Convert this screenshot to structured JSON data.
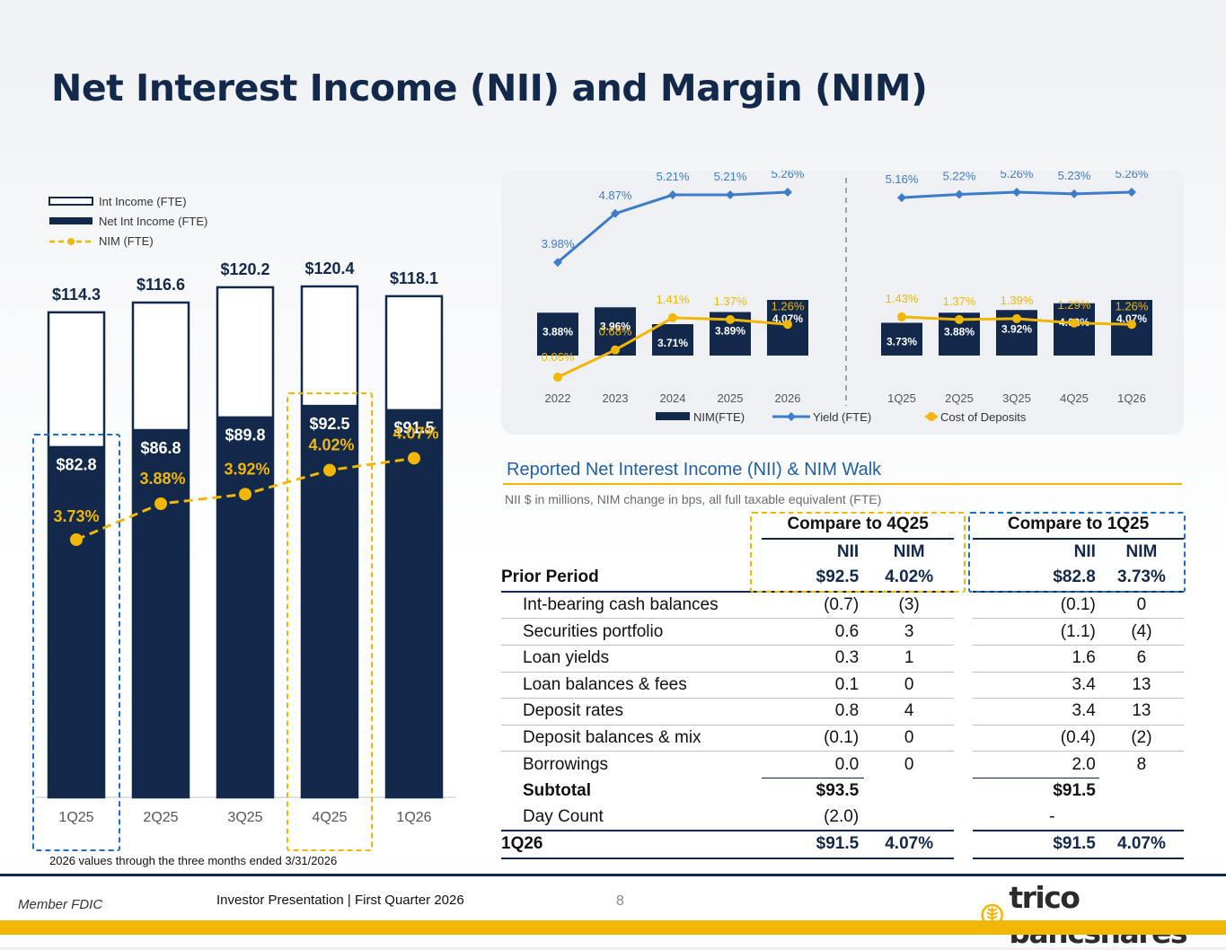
{
  "title": "Net Interest Income (NII) and Margin (NIM)",
  "colors": {
    "navy": "#13294b",
    "gold": "#f2b705",
    "blue": "#3d7cc9",
    "accent_blue": "#1f6dbf"
  },
  "chart_data": [
    {
      "type": "bar",
      "name": "quarterly-nii",
      "categories": [
        "1Q25",
        "2Q25",
        "3Q25",
        "4Q25",
        "1Q26"
      ],
      "series": [
        {
          "name": "Int Income (FTE)",
          "values": [
            114.3,
            116.6,
            120.2,
            120.4,
            118.1
          ],
          "labels": [
            "$114.3",
            "$116.6",
            "$120.2",
            "$120.4",
            "$118.1"
          ]
        },
        {
          "name": "Net Int Income (FTE)",
          "values": [
            82.8,
            86.8,
            89.8,
            92.5,
            91.5
          ],
          "labels": [
            "$82.8",
            "$86.8",
            "$89.8",
            "$92.5",
            "$91.5"
          ]
        },
        {
          "name": "NIM (FTE)",
          "values": [
            3.73,
            3.88,
            3.92,
            4.02,
            4.07
          ],
          "labels": [
            "3.73%",
            "3.88%",
            "3.92%",
            "4.02%",
            "4.07%"
          ]
        }
      ],
      "ylim": [
        0,
        125
      ],
      "footnote": "2026 values through the three months ended 3/31/2026"
    },
    {
      "type": "bar",
      "name": "yield-cost-nim",
      "categories": [
        "2022",
        "2023",
        "2024",
        "2025",
        "2026",
        "1Q25",
        "2Q25",
        "3Q25",
        "4Q25",
        "1Q26"
      ],
      "series": [
        {
          "name": "NIM(FTE)",
          "values": [
            3.88,
            3.96,
            3.71,
            3.89,
            4.07,
            3.73,
            3.88,
            3.92,
            4.02,
            4.07
          ],
          "labels": [
            "3.88%",
            "3.96%",
            "3.71%",
            "3.89%",
            "4.07%",
            "3.73%",
            "3.88%",
            "3.92%",
            "4.02%",
            "4.07%"
          ]
        },
        {
          "name": "Yield (FTE)",
          "values": [
            3.98,
            4.87,
            5.21,
            5.21,
            5.26,
            5.16,
            5.22,
            5.26,
            5.23,
            5.26
          ],
          "labels": [
            "3.98%",
            "4.87%",
            "5.21%",
            "5.21%",
            "5.26%",
            "5.16%",
            "5.22%",
            "5.26%",
            "5.23%",
            "5.26%"
          ]
        },
        {
          "name": "Cost of Deposits",
          "values": [
            0.06,
            0.68,
            1.41,
            1.37,
            1.26,
            1.43,
            1.37,
            1.39,
            1.29,
            1.26
          ],
          "labels": [
            "0.06%",
            "0.68%",
            "1.41%",
            "1.37%",
            "1.26%",
            "1.43%",
            "1.37%",
            "1.39%",
            "1.29%",
            "1.26%"
          ]
        }
      ]
    }
  ],
  "walk": {
    "title": "Reported Net Interest Income (NII) & NIM Walk",
    "subtitle": "NII $ in millions, NIM change in bps, all full taxable equivalent (FTE)",
    "group1": "Compare to 4Q25",
    "group2": "Compare to 1Q25",
    "col_nii": "NII",
    "col_nim": "NIM",
    "prior": {
      "label": "Prior  Period",
      "v": [
        "$92.5",
        "4.02%",
        "$82.8",
        "3.73%"
      ]
    },
    "rows": [
      {
        "label": "Int-bearing cash balances",
        "v": [
          "(0.7)",
          "(3)",
          "(0.1)",
          "0"
        ]
      },
      {
        "label": "Securities portfolio",
        "v": [
          "0.6",
          "3",
          "(1.1)",
          "(4)"
        ]
      },
      {
        "label": "Loan yields",
        "v": [
          "0.3",
          "1",
          "1.6",
          "6"
        ]
      },
      {
        "label": "Loan balances & fees",
        "v": [
          "0.1",
          "0",
          "3.4",
          "13"
        ]
      },
      {
        "label": "Deposit rates",
        "v": [
          "0.8",
          "4",
          "3.4",
          "13"
        ]
      },
      {
        "label": "Deposit balances & mix",
        "v": [
          "(0.1)",
          "0",
          "(0.4)",
          "(2)"
        ]
      },
      {
        "label": "Borrowings",
        "v": [
          "0.0",
          "0",
          "2.0",
          "8"
        ]
      }
    ],
    "subtotal": {
      "label": "Subtotal",
      "v": [
        "$93.5",
        "",
        "$91.5",
        ""
      ]
    },
    "daycount": {
      "label": "Day Count",
      "v": [
        "(2.0)",
        "",
        "-",
        ""
      ]
    },
    "final": {
      "label": "1Q26",
      "v": [
        "$91.5",
        "4.07%",
        "$91.5",
        "4.07%"
      ]
    }
  },
  "footer": {
    "member": "Member FDIC",
    "presentation": "Investor Presentation  |  First Quarter 2026",
    "page": "8",
    "logo": "trico bancshares"
  }
}
